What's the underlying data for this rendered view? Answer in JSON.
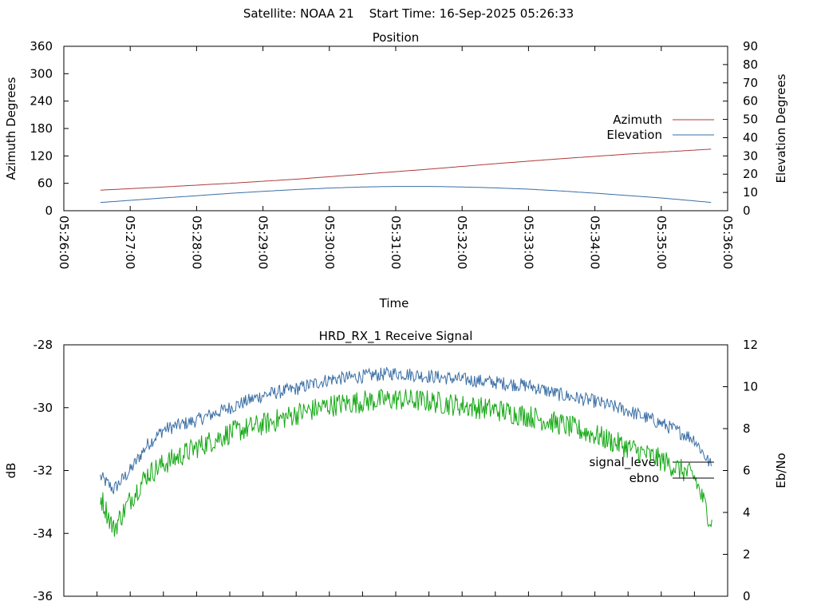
{
  "header": {
    "satellite": "Satellite: NOAA 21",
    "start_time": "Start Time: 16-Sep-2025 05:26:33"
  },
  "colors": {
    "azimuth": "#b03a3a",
    "elevation": "#3a6ea5",
    "signal_level": "#3a6ea5",
    "ebno": "#13a813",
    "axis": "#000000"
  },
  "chart_data": [
    {
      "type": "line",
      "title": "Position",
      "xlabel": "Time",
      "ylabel_left": "Azimuth Degrees",
      "ylabel_right": "Elevation Degrees",
      "x_ticks": [
        "05:26:00",
        "05:27:00",
        "05:28:00",
        "05:29:00",
        "05:30:00",
        "05:31:00",
        "05:32:00",
        "05:33:00",
        "05:34:00",
        "05:35:00",
        "05:36:00"
      ],
      "xlim": [
        "05:26:00",
        "05:36:00"
      ],
      "ylim_left": [
        0,
        360
      ],
      "yticks_left": [
        0,
        60,
        120,
        180,
        240,
        300,
        360
      ],
      "ylim_right": [
        0,
        90
      ],
      "yticks_right": [
        0,
        10,
        20,
        30,
        40,
        50,
        60,
        70,
        80,
        90
      ],
      "legend_position": "right",
      "series": [
        {
          "name": "Azimuth",
          "axis": "left",
          "x": [
            "05:26:33",
            "05:27:30",
            "05:28:30",
            "05:29:30",
            "05:30:30",
            "05:31:30",
            "05:32:30",
            "05:33:30",
            "05:34:30",
            "05:35:46"
          ],
          "y": [
            45,
            52,
            60,
            69,
            80,
            91,
            103,
            114,
            124,
            135
          ]
        },
        {
          "name": "Elevation",
          "axis": "right",
          "x": [
            "05:26:33",
            "05:27:00",
            "05:27:30",
            "05:28:00",
            "05:28:30",
            "05:29:00",
            "05:29:30",
            "05:30:00",
            "05:30:30",
            "05:31:00",
            "05:31:30",
            "05:32:00",
            "05:32:30",
            "05:33:00",
            "05:33:30",
            "05:34:00",
            "05:34:30",
            "05:35:00",
            "05:35:46"
          ],
          "y": [
            4.5,
            5.7,
            7.0,
            8.2,
            9.5,
            10.6,
            11.6,
            12.4,
            13.0,
            13.3,
            13.3,
            13.0,
            12.5,
            11.8,
            10.8,
            9.6,
            8.3,
            7.0,
            4.5
          ]
        }
      ]
    },
    {
      "type": "line",
      "title": "HRD_RX_1 Receive Signal",
      "ylabel_left": "dB",
      "ylabel_right": "Eb/No",
      "xlim": [
        "05:26:00",
        "05:36:00"
      ],
      "ylim_left": [
        -36,
        -28
      ],
      "yticks_left": [
        -36,
        -34,
        -32,
        -30,
        -28
      ],
      "ylim_right": [
        0,
        12
      ],
      "yticks_right": [
        0,
        2,
        4,
        6,
        8,
        10,
        12
      ],
      "legend_position": "right",
      "series": [
        {
          "name": "signal_level",
          "axis": "left",
          "x": [
            "05:26:33",
            "05:26:45",
            "05:27:00",
            "05:27:15",
            "05:27:30",
            "05:28:00",
            "05:28:30",
            "05:29:00",
            "05:29:30",
            "05:30:00",
            "05:30:30",
            "05:31:00",
            "05:31:30",
            "05:32:00",
            "05:32:30",
            "05:33:00",
            "05:33:30",
            "05:34:00",
            "05:34:30",
            "05:35:00",
            "05:35:30",
            "05:35:46"
          ],
          "y": [
            -32.2,
            -32.6,
            -32.0,
            -31.2,
            -30.7,
            -30.4,
            -30.0,
            -29.6,
            -29.4,
            -29.1,
            -29.0,
            -28.9,
            -29.0,
            -29.1,
            -29.2,
            -29.3,
            -29.6,
            -29.8,
            -30.1,
            -30.5,
            -31.0,
            -31.9
          ]
        },
        {
          "name": "ebno",
          "axis": "right",
          "x": [
            "05:26:33",
            "05:26:45",
            "05:27:00",
            "05:27:15",
            "05:27:30",
            "05:28:00",
            "05:28:30",
            "05:29:00",
            "05:29:30",
            "05:30:00",
            "05:30:30",
            "05:31:00",
            "05:31:30",
            "05:32:00",
            "05:32:30",
            "05:33:00",
            "05:33:30",
            "05:34:00",
            "05:34:30",
            "05:35:00",
            "05:35:30",
            "05:35:46"
          ],
          "y": [
            4.8,
            3.2,
            4.6,
            5.8,
            6.3,
            7.1,
            7.8,
            8.2,
            8.7,
            9.1,
            9.3,
            9.4,
            9.3,
            9.1,
            8.9,
            8.6,
            8.2,
            7.7,
            7.1,
            6.5,
            5.7,
            3.4
          ]
        }
      ]
    }
  ]
}
